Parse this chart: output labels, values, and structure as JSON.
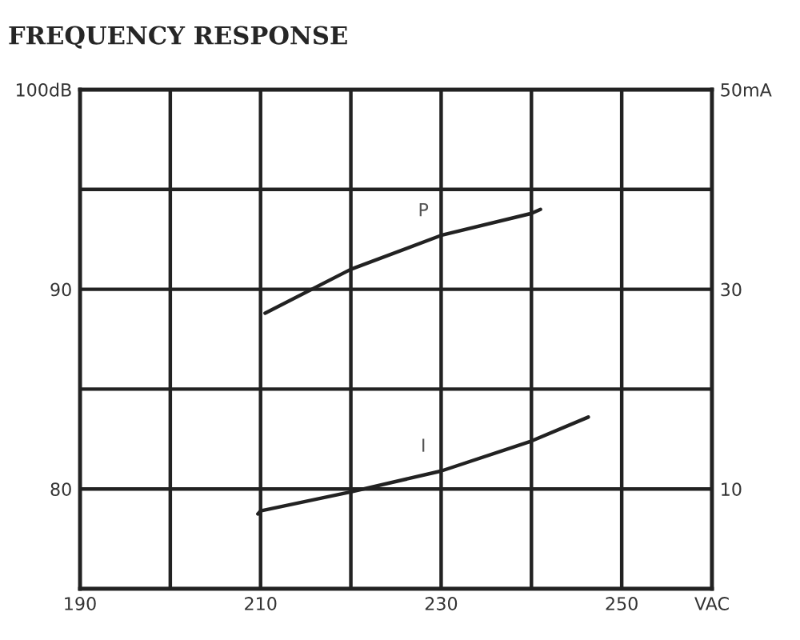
{
  "chart_data": {
    "type": "line",
    "title": "FREQUENCY RESPONSE",
    "xlim": [
      190,
      260
    ],
    "xticks": [
      190,
      {
        "value": 200,
        "label": null
      },
      210,
      {
        "value": 220,
        "label": null
      },
      230,
      {
        "value": 240,
        "label": null
      },
      250,
      {
        "value": 260,
        "label": "VAC"
      }
    ],
    "ylim": [
      75,
      100
    ],
    "yticks": [
      {
        "value": 75,
        "label": null
      },
      80,
      {
        "value": 85,
        "label": null
      },
      90,
      {
        "value": 95,
        "label": null
      },
      {
        "value": 100,
        "label": "100dB"
      }
    ],
    "y2lim": [
      0,
      50
    ],
    "y2ticks": [
      10,
      30,
      {
        "value": 50,
        "label": "50mA"
      }
    ],
    "grid": true,
    "marker": "none",
    "line_style": "solid",
    "series": [
      {
        "name": "P",
        "color": "#222222",
        "x": [
          210.5,
          220,
          230,
          240,
          241
        ],
        "values": [
          88.8,
          91.0,
          92.7,
          93.8,
          94.0
        ]
      },
      {
        "name": "I",
        "color": "#222222",
        "axis": "y2",
        "x": [
          209.7,
          210,
          220,
          230,
          240,
          246.3
        ],
        "values": [
          7.5,
          7.8,
          9.7,
          11.8,
          14.8,
          17.2
        ]
      }
    ]
  }
}
